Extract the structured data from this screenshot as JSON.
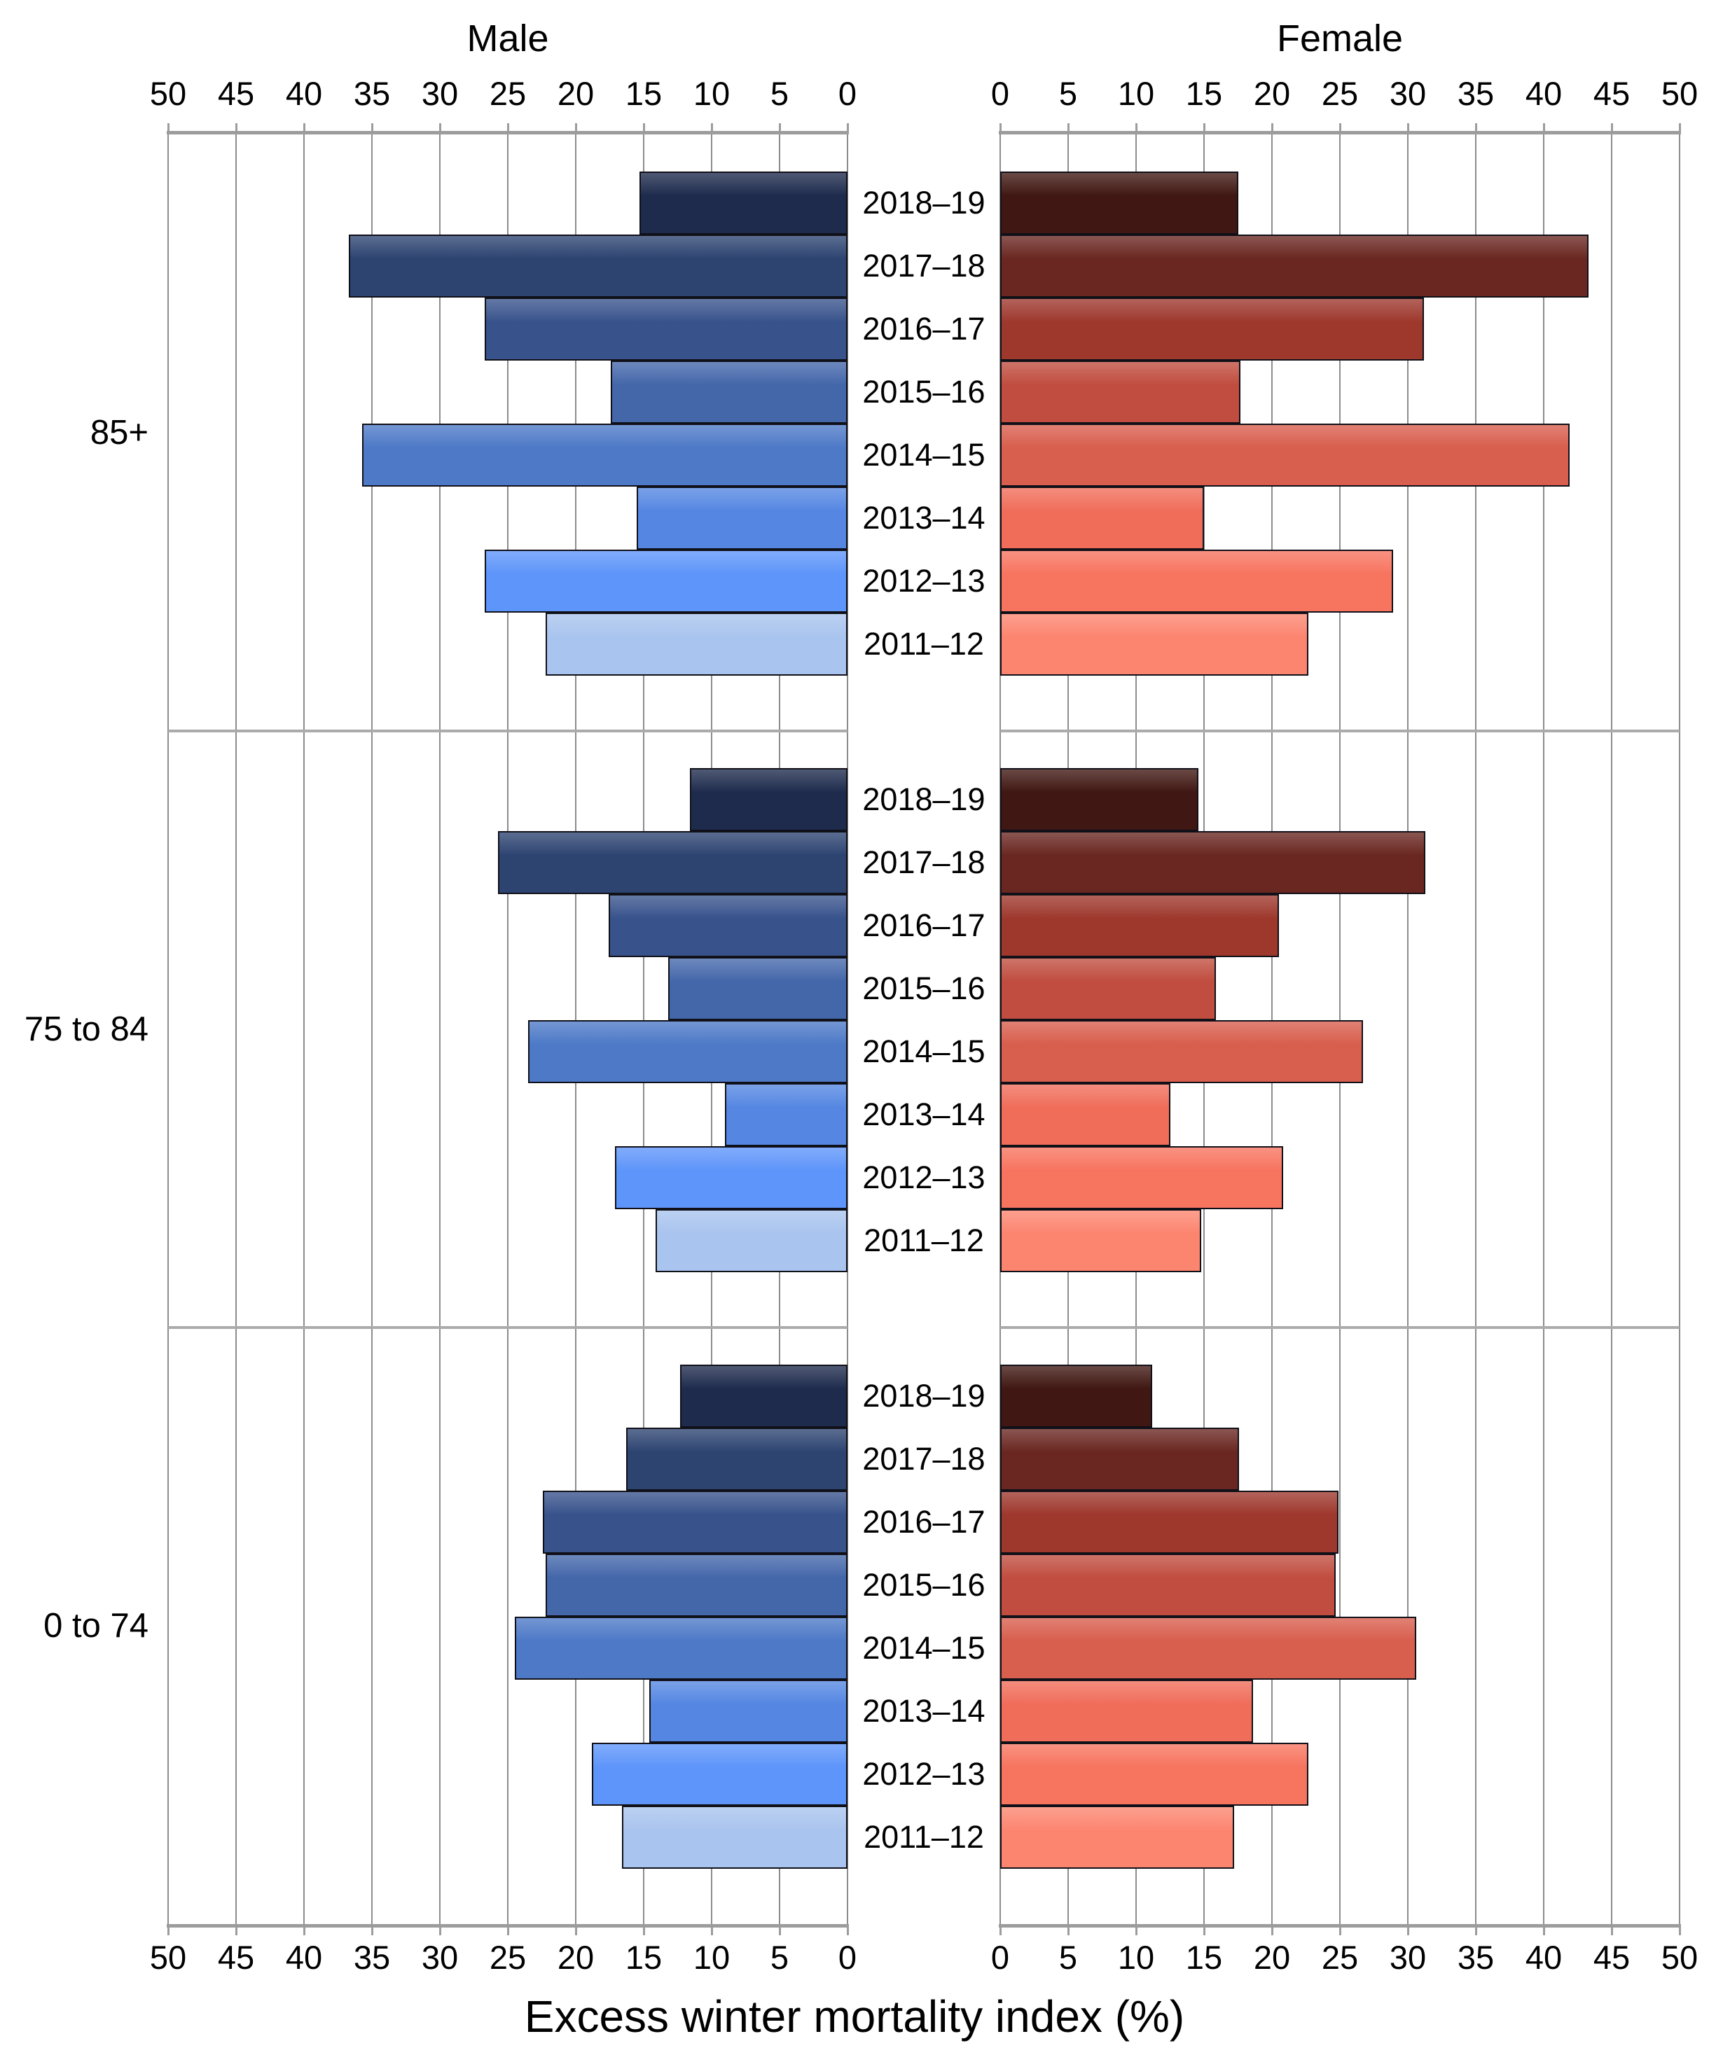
{
  "titles": {
    "left": "Male",
    "right": "Female"
  },
  "xlabel": "Excess winter mortality index (%)",
  "colors": {
    "background": "#ffffff",
    "text": "#000000",
    "gridline": "#8c8c8c",
    "axis_line": "#9c9c9c",
    "separator": "#ababab",
    "bar_border": "#101018",
    "male_by_year": [
      "#1e2b4d",
      "#2d4471",
      "#38538c",
      "#4467aa",
      "#4d79c7",
      "#5587e2",
      "#5e95fa",
      "#a9c4ee"
    ],
    "female_by_year": [
      "#401712",
      "#6a2721",
      "#9e382d",
      "#c04d3f",
      "#d85e4d",
      "#f06d5a",
      "#f7745f",
      "#fc8570"
    ]
  },
  "chart_data": {
    "type": "bar",
    "variant": "butterfly",
    "left_series": "Male",
    "right_series": "Female",
    "xlabel": "Excess winter mortality index (%)",
    "axis_range": [
      0,
      50
    ],
    "tick_step": 5,
    "grid": true,
    "legend_position": "none",
    "years_top_to_bottom": [
      "2018–19",
      "2017–18",
      "2016–17",
      "2015–16",
      "2014–15",
      "2013–14",
      "2012–13",
      "2011–12"
    ],
    "groups": [
      {
        "label": "85+",
        "rows": [
          {
            "year": "2018–19",
            "male": 15.3,
            "female": 17.5
          },
          {
            "year": "2017–18",
            "male": 36.7,
            "female": 43.3
          },
          {
            "year": "2016–17",
            "male": 26.7,
            "female": 31.2
          },
          {
            "year": "2015–16",
            "male": 17.4,
            "female": 17.7
          },
          {
            "year": "2014–15",
            "male": 35.7,
            "female": 41.9
          },
          {
            "year": "2013–14",
            "male": 15.5,
            "female": 15.0
          },
          {
            "year": "2012–13",
            "male": 26.7,
            "female": 28.9
          },
          {
            "year": "2011–12",
            "male": 22.2,
            "female": 22.7
          }
        ]
      },
      {
        "label": "75 to 84",
        "rows": [
          {
            "year": "2018–19",
            "male": 11.6,
            "female": 14.6
          },
          {
            "year": "2017–18",
            "male": 25.7,
            "female": 31.3
          },
          {
            "year": "2016–17",
            "male": 17.6,
            "female": 20.5
          },
          {
            "year": "2015–16",
            "male": 13.2,
            "female": 15.9
          },
          {
            "year": "2014–15",
            "male": 23.5,
            "female": 26.7
          },
          {
            "year": "2013–14",
            "male": 9.0,
            "female": 12.5
          },
          {
            "year": "2012–13",
            "male": 17.1,
            "female": 20.8
          },
          {
            "year": "2011–12",
            "male": 14.1,
            "female": 14.8
          }
        ]
      },
      {
        "label": "0 to 74",
        "rows": [
          {
            "year": "2018–19",
            "male": 12.3,
            "female": 11.2
          },
          {
            "year": "2017–18",
            "male": 16.3,
            "female": 17.6
          },
          {
            "year": "2016–17",
            "male": 22.4,
            "female": 24.9
          },
          {
            "year": "2015–16",
            "male": 22.2,
            "female": 24.7
          },
          {
            "year": "2014–15",
            "male": 24.5,
            "female": 30.6
          },
          {
            "year": "2013–14",
            "male": 14.6,
            "female": 18.6
          },
          {
            "year": "2012–13",
            "male": 18.8,
            "female": 22.7
          },
          {
            "year": "2011–12",
            "male": 16.6,
            "female": 17.2
          }
        ]
      }
    ]
  }
}
